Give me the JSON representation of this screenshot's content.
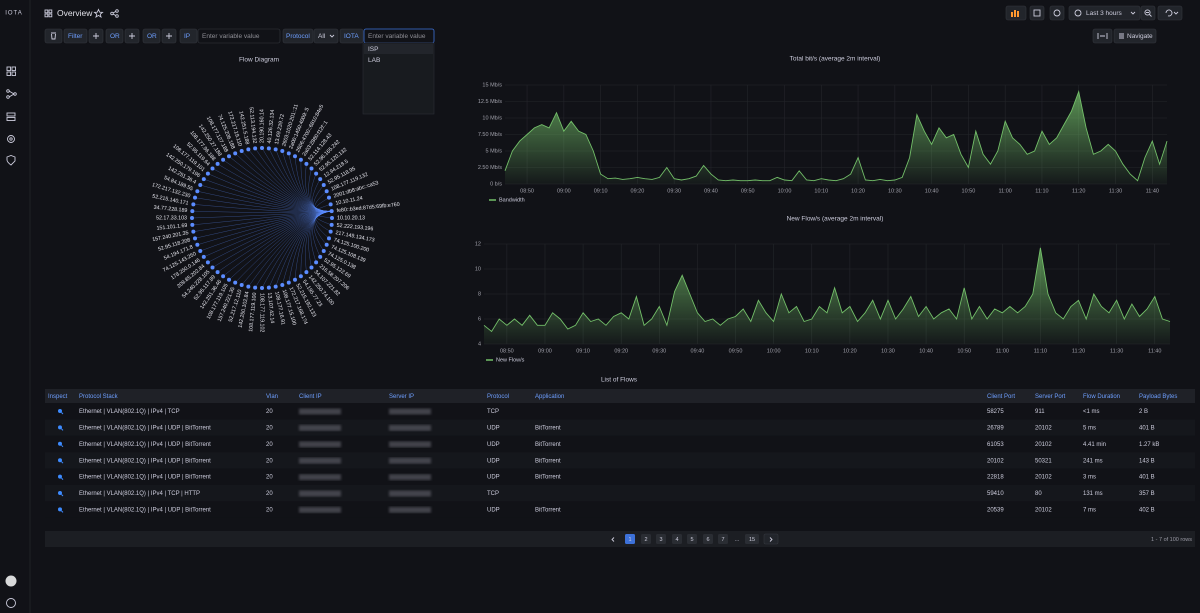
{
  "header": {
    "logo": "IOTA",
    "title": "Overview",
    "time_range": "Last 3 hours",
    "navigate": "Navigate"
  },
  "filters": {
    "filter_label": "Filter",
    "or_labels": [
      "OR",
      "OR"
    ],
    "ip_label": "IP",
    "ip_placeholder": "Enter variable value",
    "protocol_label": "Protocol",
    "protocol_value": "All",
    "iota_label": "IOTA",
    "iota_placeholder": "Enter variable value",
    "dropdown_options": [
      "ISP",
      "LAB"
    ]
  },
  "flow_diagram": {
    "title": "Flow Diagram",
    "nodes": [
      "10.10.20.13",
      "52.222.193.196",
      "217.149.134.173",
      "74.125.100.200",
      "74.125.108.139",
      "74.125.0.138",
      "52.95.122.69",
      "216.58.207.206",
      "34.107.221.82",
      "142.250.74.100",
      "54.195.77.23",
      "52.215.192.133",
      "172.217.168.174",
      "108.177.15.100",
      "108.177.16.91",
      "13.107.42.14",
      "108.177.119.102",
      "108.177.119.100",
      "142.250.102.84",
      "52.217.12.110",
      "157.240.221.35",
      "108.177.119.105",
      "142.251.36.46",
      "52.95.117.89",
      "54.240.228.105",
      "209.85.202.84",
      "178.250.0.146",
      "74.125.143.250",
      "54.194.171.8",
      "52.95.118.208",
      "157.240.201.35",
      "151.101.1.69",
      "52.17.33.103",
      "34.77.228.189",
      "52.215.140.171",
      "172.217.132.230",
      "54.84.189.55",
      "142.251.36.4",
      "142.250.179.196",
      "108.177.119.101",
      "52.95.119.64",
      "108.177.96.188",
      "142.250.27.188",
      "108.177.127.188",
      "74.125.206.188",
      "172.217.19.110",
      "142.251.5.188",
      "52.113.194.132",
      "20.190.160.14",
      "40.126.32.134",
      "13.69.239.72",
      "2603:1020:201::11",
      "2a00:1450:4009::5",
      "2606:4700::6810:84e5",
      "2a03:2880:f12f::1",
      "52.114.128.43",
      "52.96.165.242",
      "52.95.120.132",
      "12.94.218.5",
      "52.95.118.95",
      "108.177.119.132",
      "2001:db8:abc::ca53",
      "10.10.11.24",
      "fe80::b3ed:87d5:69fb:e760"
    ]
  },
  "chart_data": [
    {
      "type": "area",
      "title": "Total bit/s (average 2m interval)",
      "categories": [
        null,
        null,
        null,
        "08:50",
        null,
        null,
        null,
        null,
        "09:00",
        null,
        null,
        null,
        null,
        "09:10",
        null,
        null,
        null,
        null,
        "09:20",
        null,
        null,
        null,
        null,
        "09:30",
        null,
        null,
        null,
        null,
        "09:40",
        null,
        null,
        null,
        null,
        "09:50",
        null,
        null,
        null,
        null,
        "10:00",
        null,
        null,
        null,
        null,
        "10:10",
        null,
        null,
        null,
        null,
        "10:20",
        null,
        null,
        null,
        null,
        "10:30",
        null,
        null,
        null,
        null,
        "10:40",
        null,
        null,
        null,
        null,
        "10:50",
        null,
        null,
        null,
        null,
        "11:00",
        null,
        null,
        null,
        null,
        "11:10",
        null,
        null,
        null,
        null,
        "11:20",
        null,
        null,
        null,
        null,
        "11:30",
        null,
        null,
        null,
        null,
        "11:40",
        null,
        null
      ],
      "series": [
        {
          "name": "Bandwidth",
          "color": "#73bf69",
          "values": [
            2,
            5,
            6.5,
            7.5,
            8.5,
            9,
            8.5,
            10.8,
            8,
            9.5,
            8,
            7.5,
            5,
            1.5,
            0.8,
            0.9,
            0.7,
            0.8,
            1,
            0.8,
            0.7,
            1,
            2.5,
            0.8,
            0.6,
            0.8,
            1.2,
            2.8,
            1.5,
            0.6,
            0.5,
            0.6,
            0.5,
            0.5,
            0.6,
            0.5,
            0.5,
            1,
            0.6,
            0.5,
            2,
            0.6,
            0.5,
            0.8,
            0.6,
            0.5,
            0.8,
            1.5,
            4,
            0.6,
            0.5,
            0.7,
            0.5,
            0.6,
            1,
            4,
            10.5,
            8,
            6,
            8.5,
            7,
            7.5,
            4.5,
            2.5,
            8,
            4.5,
            3,
            5,
            9.5,
            7,
            6,
            4.5,
            5,
            8,
            6,
            7,
            9,
            11,
            14,
            8.5,
            4.5,
            5,
            6,
            5,
            3,
            1.5,
            0.5,
            4,
            6.5,
            3,
            6.5
          ]
        }
      ],
      "ylim": [
        0,
        15
      ],
      "yticks": [
        {
          "value": 0,
          "label": "0 b/s"
        },
        {
          "value": 2.5,
          "label": "2.50 Mb/s"
        },
        {
          "value": 5,
          "label": "5 Mb/s"
        },
        {
          "value": 7.5,
          "label": "7.50 Mb/s"
        },
        {
          "value": 10,
          "label": "10 Mb/s"
        },
        {
          "value": 12.5,
          "label": "12.5 Mb/s"
        },
        {
          "value": 15,
          "label": "15 Mb/s"
        }
      ],
      "grid": true,
      "legend": "bottom-left"
    },
    {
      "type": "area",
      "title": "New Flow/s (average 2m interval)",
      "categories": [
        null,
        null,
        null,
        "08:50",
        null,
        null,
        null,
        null,
        "09:00",
        null,
        null,
        null,
        null,
        "09:10",
        null,
        null,
        null,
        null,
        "09:20",
        null,
        null,
        null,
        null,
        "09:30",
        null,
        null,
        null,
        null,
        "09:40",
        null,
        null,
        null,
        null,
        "09:50",
        null,
        null,
        null,
        null,
        "10:00",
        null,
        null,
        null,
        null,
        "10:10",
        null,
        null,
        null,
        null,
        "10:20",
        null,
        null,
        null,
        null,
        "10:30",
        null,
        null,
        null,
        null,
        "10:40",
        null,
        null,
        null,
        null,
        "10:50",
        null,
        null,
        null,
        null,
        "11:00",
        null,
        null,
        null,
        null,
        "11:10",
        null,
        null,
        null,
        null,
        "11:20",
        null,
        null,
        null,
        null,
        "11:30",
        null,
        null,
        null,
        null,
        "11:40",
        null,
        null
      ],
      "series": [
        {
          "name": "New Flow/s",
          "color": "#73bf69",
          "values": [
            5.5,
            5,
            6,
            5.5,
            6,
            5.5,
            6.3,
            5.5,
            5.5,
            6.5,
            6,
            5.2,
            5.5,
            6.5,
            5.8,
            6,
            5.5,
            6.2,
            6.5,
            6,
            7.8,
            5.5,
            6,
            7,
            5.5,
            8.2,
            9.5,
            8,
            6.5,
            5.8,
            6,
            5.5,
            6,
            6.2,
            6.8,
            5.8,
            7.5,
            6.5,
            5.8,
            8,
            6.5,
            7,
            5.8,
            6,
            7,
            6.5,
            8.5,
            6.5,
            7,
            5.8,
            6.5,
            7.5,
            6,
            7.5,
            6,
            6.8,
            7.8,
            6.2,
            7,
            6,
            6.5,
            6.8,
            6,
            8.5,
            6,
            7,
            6,
            6.8,
            6.5,
            7,
            6.5,
            7,
            8,
            11.7,
            8,
            6.5,
            6,
            7,
            7.5,
            6,
            8,
            7,
            6.5,
            7.5,
            6,
            7.2,
            6.2,
            6.8,
            7.8,
            6,
            5.8
          ]
        }
      ],
      "ylim": [
        4,
        12
      ],
      "yticks": [
        4,
        6,
        8,
        10,
        12
      ],
      "grid": true,
      "legend": "bottom-left"
    }
  ],
  "table": {
    "title": "List of Flows",
    "columns": [
      "Inspect",
      "Protocol Stack",
      "Vlan",
      "Client IP",
      "Server IP",
      "Protocol",
      "Application",
      "Client Port",
      "Server Port",
      "Flow Duration",
      "Payload Bytes"
    ],
    "rows": [
      {
        "protocol_stack": "Ethernet | VLAN(802.1Q) | IPv4 | TCP",
        "vlan": "20",
        "protocol": "TCP",
        "application": null,
        "client_port": "58275",
        "server_port": "911",
        "duration": "<1 ms",
        "payload": "2 B"
      },
      {
        "protocol_stack": "Ethernet | VLAN(802.1Q) | IPv4 | UDP | BitTorrent",
        "vlan": "20",
        "protocol": "UDP",
        "application": "BitTorrent",
        "client_port": "26789",
        "server_port": "20102",
        "duration": "5 ms",
        "payload": "401 B"
      },
      {
        "protocol_stack": "Ethernet | VLAN(802.1Q) | IPv4 | UDP | BitTorrent",
        "vlan": "20",
        "protocol": "UDP",
        "application": "BitTorrent",
        "client_port": "61053",
        "server_port": "20102",
        "duration": "4.41 min",
        "payload": "1.27 kB"
      },
      {
        "protocol_stack": "Ethernet | VLAN(802.1Q) | IPv4 | UDP | BitTorrent",
        "vlan": "20",
        "protocol": "UDP",
        "application": "BitTorrent",
        "client_port": "20102",
        "server_port": "50321",
        "duration": "241 ms",
        "payload": "143 B"
      },
      {
        "protocol_stack": "Ethernet | VLAN(802.1Q) | IPv4 | UDP | BitTorrent",
        "vlan": "20",
        "protocol": "UDP",
        "application": "BitTorrent",
        "client_port": "22818",
        "server_port": "20102",
        "duration": "3 ms",
        "payload": "401 B"
      },
      {
        "protocol_stack": "Ethernet | VLAN(802.1Q) | IPv4 | TCP | HTTP",
        "vlan": "20",
        "protocol": "TCP",
        "application": null,
        "client_port": "59410",
        "server_port": "80",
        "duration": "131 ms",
        "payload": "357 B"
      },
      {
        "protocol_stack": "Ethernet | VLAN(802.1Q) | IPv4 | UDP | BitTorrent",
        "vlan": "20",
        "protocol": "UDP",
        "application": "BitTorrent",
        "client_port": "20539",
        "server_port": "20102",
        "duration": "7 ms",
        "payload": "402 B"
      }
    ]
  },
  "pagination": {
    "pages": [
      "1",
      "2",
      "3",
      "4",
      "5",
      "6",
      "7",
      "…",
      "15"
    ],
    "current": "1",
    "rows_info": "1 - 7 of 100 rows"
  }
}
